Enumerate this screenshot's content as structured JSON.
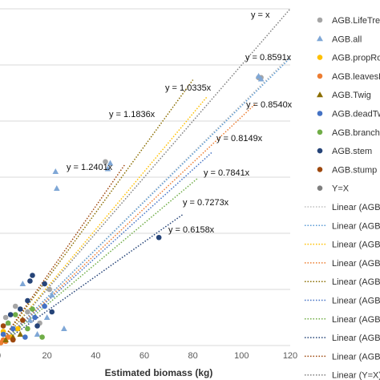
{
  "chart_data": {
    "type": "scatter",
    "xlabel": "Estimated biomass (kg)",
    "ylabel": "",
    "xlim": [
      0,
      120
    ],
    "ylim": [
      0,
      120
    ],
    "x_ticks": [
      "0",
      "20",
      "40",
      "60",
      "80",
      "100",
      "120"
    ],
    "grid": "horizontal",
    "legend_position": "right",
    "series": [
      {
        "name": "AGB.LifeTrees",
        "marker": "circle",
        "color": "#a5a5a5",
        "points": [
          [
            107,
            95.5
          ],
          [
            108,
            95.5
          ],
          [
            44,
            65.5
          ],
          [
            3,
            10
          ],
          [
            7,
            14
          ],
          [
            12,
            12
          ],
          [
            17,
            8
          ],
          [
            21,
            20
          ]
        ]
      },
      {
        "name": "AGB.all",
        "marker": "triangle",
        "color": "#7fa7d6",
        "points": [
          [
            23.5,
            62
          ],
          [
            24,
            56
          ],
          [
            45,
            63
          ],
          [
            46,
            65
          ],
          [
            108,
            95
          ],
          [
            107,
            96
          ],
          [
            22,
            18
          ],
          [
            10,
            22
          ],
          [
            13,
            9
          ],
          [
            20,
            10
          ],
          [
            27,
            6
          ],
          [
            4,
            8
          ],
          [
            16,
            4
          ]
        ]
      },
      {
        "name": "AGB.propRoots",
        "marker": "circle",
        "color": "#ffc000",
        "points": [
          [
            2,
            5
          ],
          [
            5,
            3
          ],
          [
            8,
            6
          ]
        ]
      },
      {
        "name": "AGB.leavesFruits",
        "marker": "circle",
        "color": "#ed7d31",
        "points": [
          [
            1,
            1
          ],
          [
            2,
            2
          ],
          [
            3,
            1.5
          ],
          [
            4,
            3
          ]
        ]
      },
      {
        "name": "AGB.Twig",
        "marker": "triangle",
        "color": "#8a6d00",
        "points": [
          [
            3,
            2
          ],
          [
            6,
            3
          ],
          [
            9,
            4
          ]
        ]
      },
      {
        "name": "AGB.deadTwigs",
        "marker": "circle",
        "color": "#4472c4",
        "points": [
          [
            2,
            4
          ],
          [
            6,
            6
          ],
          [
            11,
            3
          ],
          [
            15,
            10
          ],
          [
            19,
            14
          ]
        ]
      },
      {
        "name": "AGB.branch",
        "marker": "circle",
        "color": "#70ad47",
        "points": [
          [
            4,
            8
          ],
          [
            7,
            11
          ],
          [
            12,
            6
          ],
          [
            14,
            13
          ],
          [
            18,
            3
          ]
        ]
      },
      {
        "name": "AGB.stem",
        "marker": "circle",
        "color": "#264478",
        "points": [
          [
            66,
            38.5
          ],
          [
            14,
            25
          ],
          [
            13,
            23
          ],
          [
            19,
            22
          ],
          [
            12,
            16
          ],
          [
            9,
            13
          ],
          [
            16,
            7
          ],
          [
            22,
            12
          ],
          [
            5,
            11
          ]
        ]
      },
      {
        "name": "AGB.stump",
        "marker": "circle",
        "color": "#9e480e",
        "points": [
          [
            2,
            7
          ],
          [
            6,
            2
          ],
          [
            10,
            9
          ]
        ]
      },
      {
        "name": "Y=X",
        "marker": "circle",
        "color": "#7f7f7f",
        "points": []
      }
    ],
    "trendlines": [
      {
        "name": "Linear (AGB.LifeTrees)",
        "color": "#bfbfbf",
        "slope": 0.8591,
        "label": "y = 0.8591x",
        "x_end": 120
      },
      {
        "name": "Linear (AGB.all)",
        "color": "#5b9bd5",
        "slope": 0.854,
        "label": "y = 0.8540x",
        "x_end": 120
      },
      {
        "name": "Linear (AGB.propRoots)",
        "color": "#ffc000",
        "slope": 1.0335,
        "label": "y = 1.0335x",
        "x_end": 86
      },
      {
        "name": "Linear (AGB.leavesFruits)",
        "color": "#ed7d31",
        "slope": 0.8149,
        "label": "y = 0.8149x",
        "x_end": 106
      },
      {
        "name": "Linear (AGB.Twig)",
        "color": "#8a6d00",
        "slope": 1.1836,
        "label": "y = 1.1836x",
        "x_end": 80
      },
      {
        "name": "Linear (AGB.deadTwigs)",
        "color": "#4472c4",
        "slope": 0.7841,
        "label": "y = 0.7841x",
        "x_end": 88
      },
      {
        "name": "Linear (AGB.branch)",
        "color": "#70ad47",
        "slope": 0.7273,
        "label": "y = 0.7273x",
        "x_end": 82
      },
      {
        "name": "Linear (AGB.stem)",
        "color": "#264478",
        "slope": 0.6158,
        "label": "y = 0.6158x",
        "x_end": 76
      },
      {
        "name": "Linear (AGB.stump)",
        "color": "#9e480e",
        "slope": 1.2401,
        "label": "y = 1.2401x",
        "x_end": 52
      },
      {
        "name": "Linear (Y=X)",
        "color": "#7f7f7f",
        "slope": 1.0,
        "label": "y = x",
        "x_end": 120
      }
    ],
    "legend": [
      "AGB.LifeTrees",
      "AGB.all",
      "AGB.propRoots",
      "AGB.leavesFruits",
      "AGB.Twig",
      "AGB.deadTwigs",
      "AGB.branch",
      "AGB.stem",
      "AGB.stump",
      "Y=X",
      "Linear (AGB.LifeTrees)",
      "Linear (AGB.all)",
      "Linear (AGB.propRoots)",
      "Linear (AGB.leavesFruits)",
      "Linear (AGB.Twig)",
      "Linear (AGB.deadTwigs)",
      "Linear (AGB.branch)",
      "Linear (AGB.stem)",
      "Linear (AGB.stump)",
      "Linear (Y=X)"
    ]
  }
}
